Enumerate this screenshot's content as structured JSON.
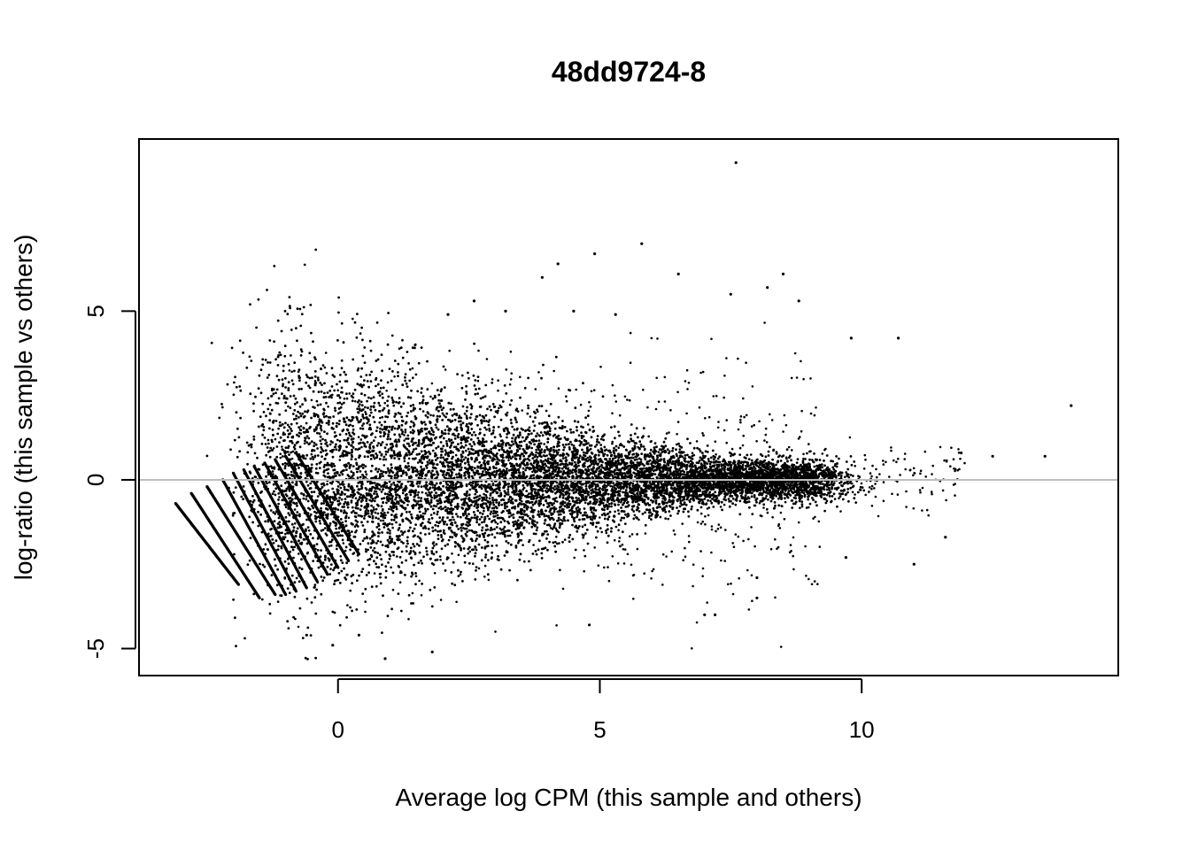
{
  "chart_data": {
    "type": "scatter",
    "title": "48dd9724-8",
    "xlabel": "Average log CPM (this sample and others)",
    "ylabel": "log-ratio (this sample vs others)",
    "xlim": [
      -3.8,
      14.9
    ],
    "ylim": [
      -5.8,
      10.1
    ],
    "xticks": [
      0,
      5,
      10
    ],
    "yticks": [
      -5,
      0,
      5
    ],
    "reference_line": {
      "y": 0,
      "color": "#bebebe"
    },
    "point_color": "#000000",
    "grid": false,
    "legend": "none",
    "low_count_bands": [
      {
        "x_start": -3.1,
        "y_start": -0.7,
        "x_end": -1.9,
        "y_end": -3.1
      },
      {
        "x_start": -2.8,
        "y_start": -0.4,
        "x_end": -1.5,
        "y_end": -3.5
      },
      {
        "x_start": -2.5,
        "y_start": -0.2,
        "x_end": -1.2,
        "y_end": -3.4
      },
      {
        "x_start": -2.2,
        "y_start": 0.0,
        "x_end": -1.0,
        "y_end": -3.4
      },
      {
        "x_start": -2.0,
        "y_start": 0.2,
        "x_end": -0.8,
        "y_end": -3.3
      },
      {
        "x_start": -1.8,
        "y_start": 0.3,
        "x_end": -0.6,
        "y_end": -3.2
      },
      {
        "x_start": -1.6,
        "y_start": 0.4,
        "x_end": -0.4,
        "y_end": -3.0
      },
      {
        "x_start": -1.4,
        "y_start": 0.5,
        "x_end": -0.2,
        "y_end": -2.8
      },
      {
        "x_start": -1.2,
        "y_start": 0.6,
        "x_end": 0.0,
        "y_end": -2.6
      },
      {
        "x_start": -1.0,
        "y_start": 0.7,
        "x_end": 0.2,
        "y_end": -2.4
      },
      {
        "x_start": -0.8,
        "y_start": 0.8,
        "x_end": 0.4,
        "y_end": -2.2
      }
    ],
    "notable_points": [
      {
        "x": 7.6,
        "y": 9.4
      },
      {
        "x": 5.8,
        "y": 7.0
      },
      {
        "x": 4.9,
        "y": 6.7
      },
      {
        "x": 4.2,
        "y": 6.4
      },
      {
        "x": 6.5,
        "y": 6.1
      },
      {
        "x": 8.5,
        "y": 6.1
      },
      {
        "x": 3.9,
        "y": 6.0
      },
      {
        "x": 8.2,
        "y": 5.7
      },
      {
        "x": 7.5,
        "y": 5.5
      },
      {
        "x": 8.8,
        "y": 5.3
      },
      {
        "x": 2.6,
        "y": 5.3
      },
      {
        "x": 3.2,
        "y": 5.0
      },
      {
        "x": 2.1,
        "y": 4.9
      },
      {
        "x": 4.5,
        "y": 5.0
      },
      {
        "x": 5.3,
        "y": 4.9
      },
      {
        "x": 9.8,
        "y": 4.2
      },
      {
        "x": 10.7,
        "y": 4.2
      },
      {
        "x": 14.0,
        "y": 2.2
      },
      {
        "x": 13.5,
        "y": 0.7
      },
      {
        "x": 12.5,
        "y": 0.7
      },
      {
        "x": 11.9,
        "y": 0.8
      },
      {
        "x": 11.6,
        "y": -1.7
      },
      {
        "x": 11.0,
        "y": -2.5
      },
      {
        "x": 9.7,
        "y": -2.3
      },
      {
        "x": 8.0,
        "y": -2.9
      },
      {
        "x": 8.0,
        "y": -3.5
      },
      {
        "x": 7.2,
        "y": -4.0
      },
      {
        "x": 7.0,
        "y": -4.0
      },
      {
        "x": 4.8,
        "y": -4.3
      },
      {
        "x": 1.8,
        "y": -5.1
      },
      {
        "x": 0.9,
        "y": -5.3
      },
      {
        "x": -0.1,
        "y": -4.9
      },
      {
        "x": 0.4,
        "y": -4.6
      },
      {
        "x": -0.6,
        "y": -4.6
      }
    ]
  }
}
